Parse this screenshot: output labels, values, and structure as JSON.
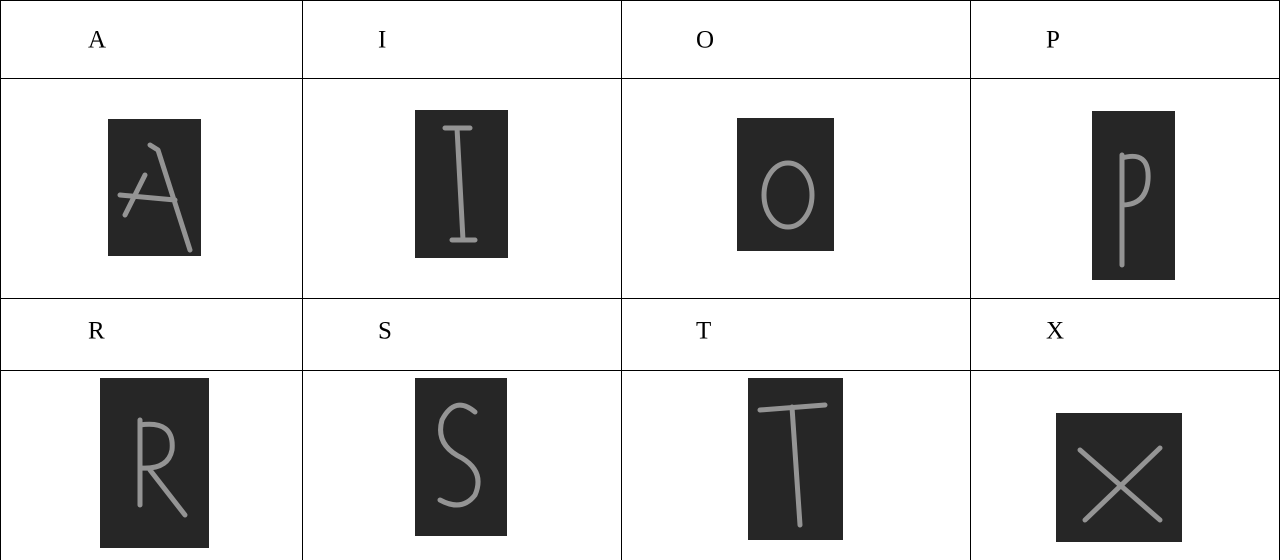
{
  "table": {
    "rows": [
      [
        "A",
        "I",
        "O",
        "P"
      ],
      [
        "R",
        "S",
        "T",
        "X"
      ]
    ]
  }
}
